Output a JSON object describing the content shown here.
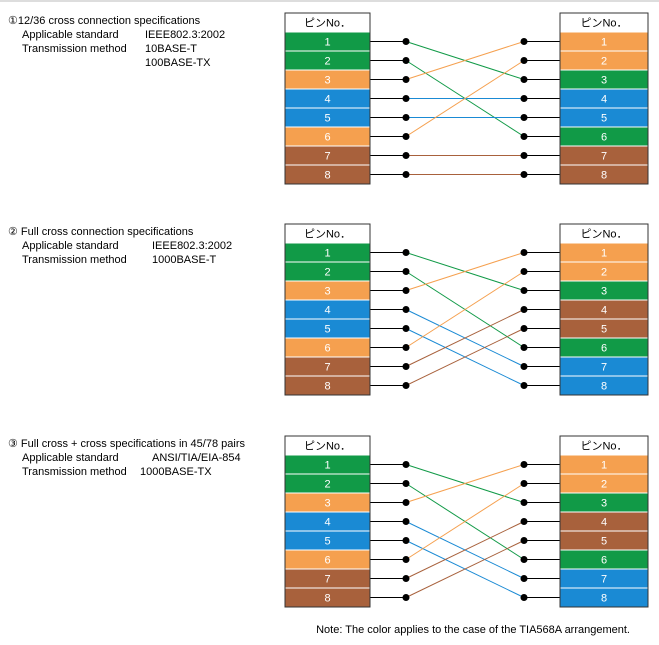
{
  "sections": [
    {
      "title": "①12/36 cross connection specifications",
      "specs": [
        {
          "label": "Applicable standard",
          "values": [
            "IEEE802.3:2002"
          ]
        },
        {
          "label": "Transmission method",
          "values": [
            "10BASE-T",
            "100BASE-TX"
          ]
        }
      ],
      "left": {
        "header": "ピンNo．",
        "pins": [
          {
            "label": "1",
            "color": "#119a47"
          },
          {
            "label": "2",
            "color": "#119a47"
          },
          {
            "label": "3",
            "color": "#f5a04f"
          },
          {
            "label": "4",
            "color": "#1a8ad4"
          },
          {
            "label": "5",
            "color": "#1a8ad4"
          },
          {
            "label": "6",
            "color": "#f5a04f"
          },
          {
            "label": "7",
            "color": "#a8613c"
          },
          {
            "label": "8",
            "color": "#a8613c"
          }
        ]
      },
      "right": {
        "header": "ピンNo．",
        "pins": [
          {
            "label": "1",
            "color": "#f5a04f"
          },
          {
            "label": "2",
            "color": "#f5a04f"
          },
          {
            "label": "3",
            "color": "#119a47"
          },
          {
            "label": "4",
            "color": "#1a8ad4"
          },
          {
            "label": "5",
            "color": "#1a8ad4"
          },
          {
            "label": "6",
            "color": "#119a47"
          },
          {
            "label": "7",
            "color": "#a8613c"
          },
          {
            "label": "8",
            "color": "#a8613c"
          }
        ]
      },
      "wiring": [
        3,
        6,
        1,
        4,
        5,
        2,
        7,
        8
      ]
    },
    {
      "title": "② Full cross connection specifications",
      "specs": [
        {
          "label": "Applicable standard",
          "values": [
            "IEEE802.3:2002"
          ]
        },
        {
          "label": "Transmission method",
          "values": [
            "1000BASE-T"
          ]
        }
      ],
      "left": {
        "header": "ピンNo．",
        "pins": [
          {
            "label": "1",
            "color": "#119a47"
          },
          {
            "label": "2",
            "color": "#119a47"
          },
          {
            "label": "3",
            "color": "#f5a04f"
          },
          {
            "label": "4",
            "color": "#1a8ad4"
          },
          {
            "label": "5",
            "color": "#1a8ad4"
          },
          {
            "label": "6",
            "color": "#f5a04f"
          },
          {
            "label": "7",
            "color": "#a8613c"
          },
          {
            "label": "8",
            "color": "#a8613c"
          }
        ]
      },
      "right": {
        "header": "ピンNo．",
        "pins": [
          {
            "label": "1",
            "color": "#f5a04f"
          },
          {
            "label": "2",
            "color": "#f5a04f"
          },
          {
            "label": "3",
            "color": "#119a47"
          },
          {
            "label": "4",
            "color": "#a8613c"
          },
          {
            "label": "5",
            "color": "#a8613c"
          },
          {
            "label": "6",
            "color": "#119a47"
          },
          {
            "label": "7",
            "color": "#1a8ad4"
          },
          {
            "label": "8",
            "color": "#1a8ad4"
          }
        ]
      },
      "wiring": [
        3,
        6,
        1,
        7,
        8,
        2,
        4,
        5
      ]
    },
    {
      "title": "③ Full cross + cross specifications in 45/78 pairs",
      "specs": [
        {
          "label": "Applicable standard",
          "values": [
            "ANSI/TIA/EIA-854"
          ]
        },
        {
          "label": "Transmission method",
          "values": [
            "1000BASE-TX"
          ]
        }
      ],
      "left": {
        "header": "ピンNo．",
        "pins": [
          {
            "label": "1",
            "color": "#119a47"
          },
          {
            "label": "2",
            "color": "#119a47"
          },
          {
            "label": "3",
            "color": "#f5a04f"
          },
          {
            "label": "4",
            "color": "#1a8ad4"
          },
          {
            "label": "5",
            "color": "#1a8ad4"
          },
          {
            "label": "6",
            "color": "#f5a04f"
          },
          {
            "label": "7",
            "color": "#a8613c"
          },
          {
            "label": "8",
            "color": "#a8613c"
          }
        ]
      },
      "right": {
        "header": "ピンNo．",
        "pins": [
          {
            "label": "1",
            "color": "#f5a04f"
          },
          {
            "label": "2",
            "color": "#f5a04f"
          },
          {
            "label": "3",
            "color": "#119a47"
          },
          {
            "label": "4",
            "color": "#a8613c"
          },
          {
            "label": "5",
            "color": "#a8613c"
          },
          {
            "label": "6",
            "color": "#119a47"
          },
          {
            "label": "7",
            "color": "#1a8ad4"
          },
          {
            "label": "8",
            "color": "#1a8ad4"
          }
        ]
      },
      "wiring": [
        3,
        6,
        1,
        7,
        8,
        2,
        4,
        5
      ]
    }
  ],
  "note": "Note: The color applies to the case of the TIA568A arrangement."
}
